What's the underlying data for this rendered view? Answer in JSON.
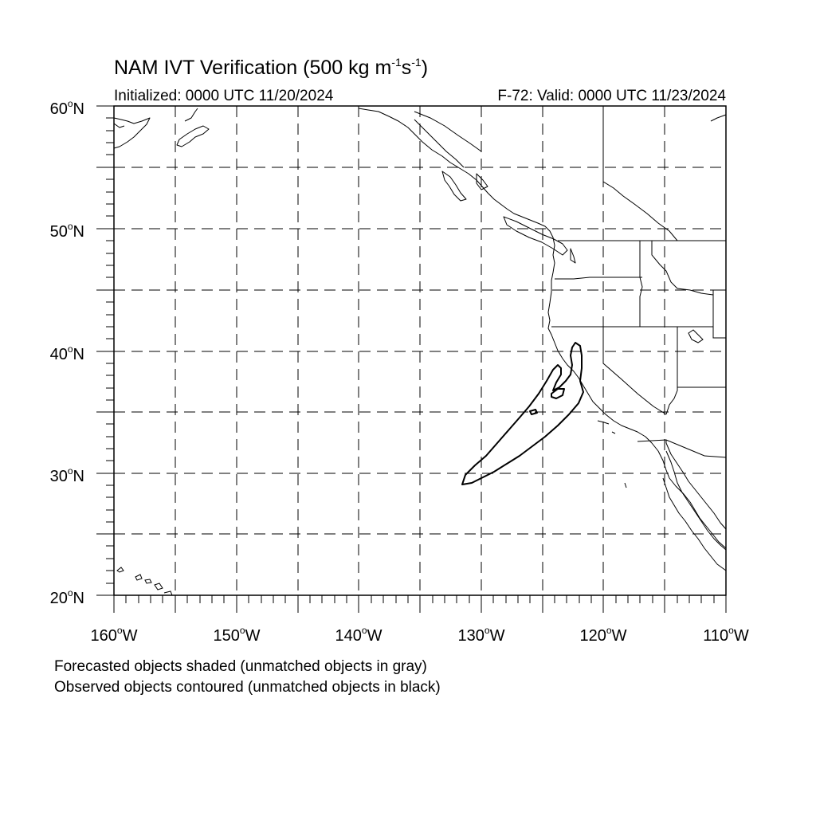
{
  "header": {
    "title_main": "NAM IVT Verification (500 kg m",
    "title_exp1": "-1",
    "title_mid": "s",
    "title_exp2": "-1",
    "title_end": ")",
    "initialized": "Initialized: 0000 UTC 11/20/2024",
    "valid": "F-72: Valid: 0000 UTC 11/23/2024"
  },
  "map": {
    "lat_labels": [
      {
        "deg": "60",
        "suffix": "N"
      },
      {
        "deg": "50",
        "suffix": "N"
      },
      {
        "deg": "40",
        "suffix": "N"
      },
      {
        "deg": "30",
        "suffix": "N"
      },
      {
        "deg": "20",
        "suffix": "N"
      }
    ],
    "lon_labels": [
      {
        "deg": "160",
        "suffix": "W"
      },
      {
        "deg": "150",
        "suffix": "W"
      },
      {
        "deg": "140",
        "suffix": "W"
      },
      {
        "deg": "130",
        "suffix": "W"
      },
      {
        "deg": "120",
        "suffix": "W"
      },
      {
        "deg": "110",
        "suffix": "W"
      }
    ],
    "colors": {
      "frame": "#000000",
      "grid": "#000000",
      "coast": "#000000",
      "observed_contour": "#000000"
    }
  },
  "footer": {
    "line1": "Forecasted objects shaded (unmatched objects in gray)",
    "line2": "Observed objects contoured (unmatched objects in black)"
  }
}
